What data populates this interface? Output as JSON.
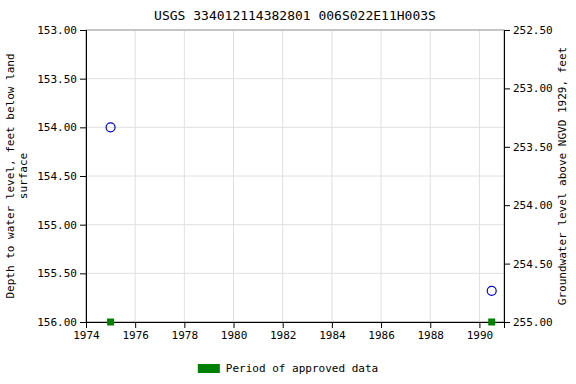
{
  "chart_data": {
    "type": "scatter",
    "title": "USGS 334012114382801 006S022E11H003S",
    "y_label": "Depth to water level, feet below land\nsurface",
    "y2_label": "Groundwater level above NGVD 1929, feet",
    "x": [
      1975.0,
      1990.5
    ],
    "series": [
      {
        "values": [
          154.0,
          155.68
        ],
        "color": "#0000cc",
        "marker": "circle"
      },
      {
        "name": "Period of approved data",
        "values": [
          156.0,
          156.0
        ],
        "color": "#008000",
        "marker": "square"
      }
    ],
    "xlim": [
      1974,
      1991
    ],
    "xticks": [
      1974,
      1976,
      1978,
      1980,
      1982,
      1984,
      1986,
      1988,
      1990
    ],
    "ylim": [
      156.0,
      153.0
    ],
    "yticks": [
      {
        "value": 153.0,
        "label": "153.00"
      },
      {
        "value": 153.5,
        "label": "153.50"
      },
      {
        "value": 154.0,
        "label": "154.00"
      },
      {
        "value": 154.5,
        "label": "154.50"
      },
      {
        "value": 155.0,
        "label": "155.00"
      },
      {
        "value": 155.5,
        "label": "155.50"
      },
      {
        "value": 156.0,
        "label": "156.00"
      }
    ],
    "y2lim": [
      255.0,
      252.5
    ],
    "y2ticks": [
      {
        "value": 255.0,
        "label": "255.00"
      },
      {
        "value": 254.5,
        "label": "254.50"
      },
      {
        "value": 254.0,
        "label": "254.00"
      },
      {
        "value": 253.5,
        "label": "253.50"
      },
      {
        "value": 253.0,
        "label": "253.00"
      },
      {
        "value": 252.5,
        "label": "252.50"
      }
    ],
    "grid": true,
    "legend": "bottom"
  }
}
